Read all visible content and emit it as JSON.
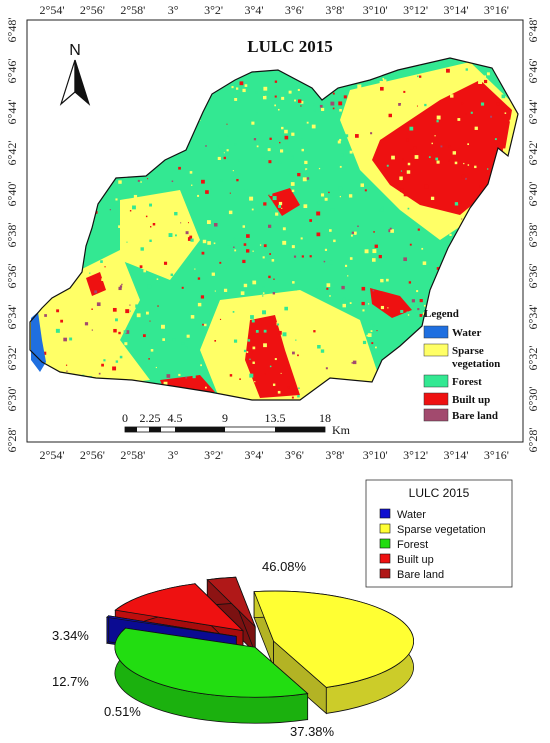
{
  "map": {
    "title": "LULC 2015",
    "north_label": "N",
    "top_ticks": [
      "2°54'",
      "2°56'",
      "2°58'",
      "3°",
      "3°2'",
      "3°4'",
      "3°6'",
      "3°8'",
      "3°10'",
      "3°12'",
      "3°14'",
      "3°16'"
    ],
    "bottom_ticks": [
      "2°54'",
      "2°56'",
      "2°58'",
      "3°",
      "3°2'",
      "3°4'",
      "3°6'",
      "3°8'",
      "3°10'",
      "3°12'",
      "3°14'",
      "3°16'"
    ],
    "left_ticks": [
      "6°48'",
      "6°46'",
      "6°44'",
      "6°42'",
      "6°40'",
      "6°38'",
      "6°36'",
      "6°34'",
      "6°32'",
      "6°30'",
      "6°28'"
    ],
    "right_ticks": [
      "6°48'",
      "6°46'",
      "6°44'",
      "6°42'",
      "6°40'",
      "6°38'",
      "6°36'",
      "6°34'",
      "6°32'",
      "6°30'",
      "6°28'"
    ],
    "legend": {
      "title": "Legend",
      "items": [
        {
          "label": "Water",
          "color": "#1f6fe0"
        },
        {
          "label": "Sparse vegetation",
          "color": "#ffff66"
        },
        {
          "label": "Forest",
          "color": "#33e892"
        },
        {
          "label": "Built up",
          "color": "#ee1111"
        },
        {
          "label": "Bare land",
          "color": "#a24a6e"
        }
      ]
    },
    "scale": {
      "labels": [
        "0",
        "2.25",
        "4.5",
        "9",
        "13.5",
        "18"
      ],
      "unit": "Km"
    },
    "colors": {
      "forest": "#33e892",
      "sparse": "#ffff66",
      "built": "#ee1111",
      "bare": "#a24a6e",
      "water": "#1f6fe0"
    }
  },
  "chart_data": {
    "type": "pie",
    "title": "LULC 2015",
    "categories": [
      "Water",
      "Sparse vegetation",
      "Forest",
      "Built up",
      "Bare land"
    ],
    "values": [
      0.51,
      46.08,
      37.38,
      12.7,
      3.34
    ],
    "value_labels": [
      "0.51%",
      "46.08%",
      "37.38%",
      "12.7%",
      "3.34%"
    ],
    "colors": [
      "#1010d0",
      "#ffff33",
      "#22dd11",
      "#ee1111",
      "#b01818"
    ],
    "legend_placement": "top-right",
    "style": "3d-exploded"
  }
}
